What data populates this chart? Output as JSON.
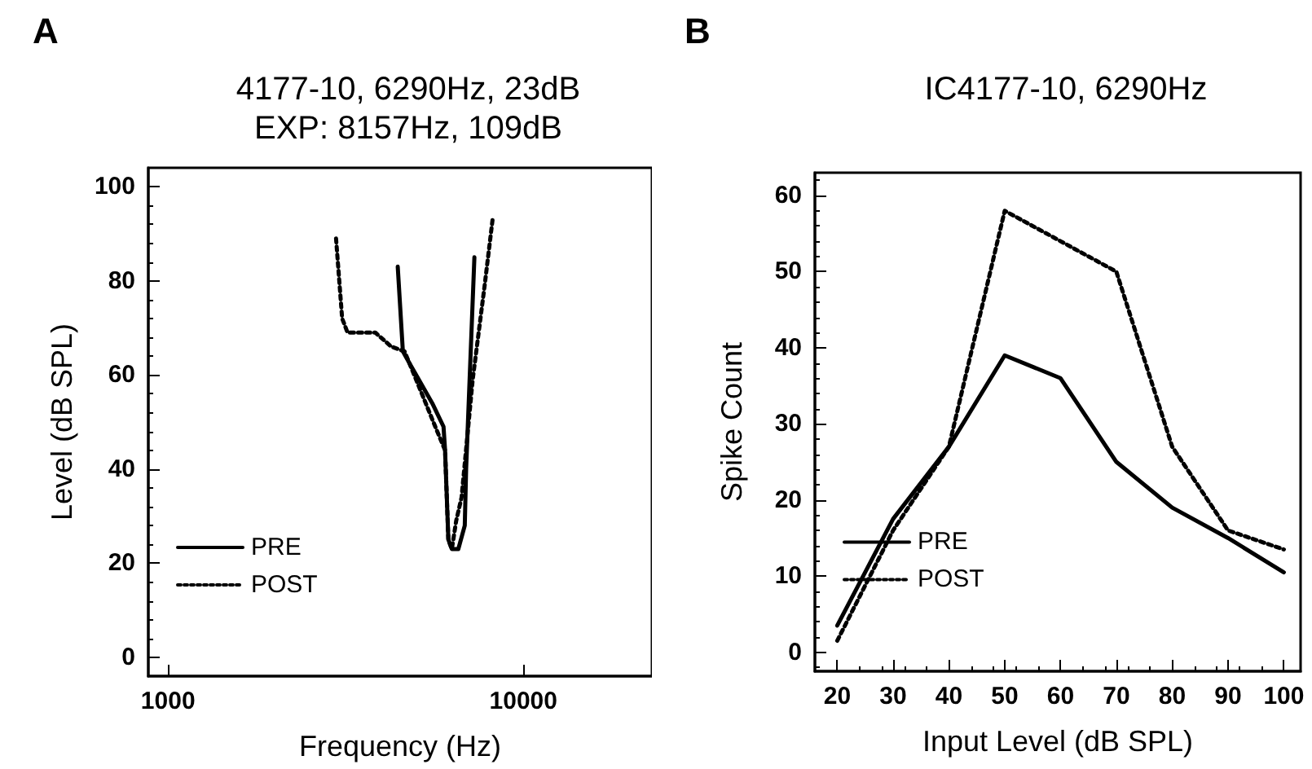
{
  "chart_data": [
    {
      "type": "line",
      "title": "4177-10, 6290Hz, 23dB\nEXP: 8157Hz, 109dB",
      "xlabel": "Frequency (Hz)",
      "ylabel": "Level (dB SPL)",
      "annotations": [
        "A"
      ],
      "log": "x",
      "xlim": [
        880,
        23000
      ],
      "xticks": [
        1000,
        10000
      ],
      "ylim": [
        -4,
        104
      ],
      "yticks": [
        0,
        20,
        40,
        60,
        80,
        100
      ],
      "grid": false,
      "legend": "bottom left",
      "marker": "none",
      "series": [
        {
          "name": "PRE",
          "color": "#000000",
          "line_style": "solid",
          "x": [
            4430,
            4580,
            4820,
            5540,
            5960,
            6020,
            6150,
            6290,
            6560,
            6840,
            6900,
            7280
          ],
          "values": [
            83,
            65,
            62,
            54,
            49,
            44,
            25,
            23,
            23,
            28,
            40,
            85
          ]
        },
        {
          "name": "POST",
          "color": "#000000",
          "line_style": "dotted",
          "x": [
            2970,
            3090,
            3200,
            3830,
            4250,
            4630,
            5650,
            6020,
            6150,
            6290,
            6470,
            6700,
            7200,
            7780,
            8190
          ],
          "values": [
            89,
            72,
            69,
            69,
            66,
            65,
            49,
            44,
            25,
            23,
            29,
            34,
            59,
            79,
            93
          ]
        }
      ]
    },
    {
      "type": "line",
      "title": "IC4177-10, 6290Hz",
      "xlabel": "Input Level (dB SPL)",
      "ylabel": "Spike Count",
      "annotations": [
        "B"
      ],
      "xlim": [
        16,
        103
      ],
      "xticks": [
        20,
        30,
        40,
        50,
        60,
        70,
        80,
        90,
        100
      ],
      "ylim": [
        -2.5,
        63
      ],
      "yticks": [
        0,
        10,
        20,
        30,
        40,
        50,
        60
      ],
      "grid": false,
      "legend": "bottom left",
      "marker": "none",
      "series": [
        {
          "name": "PRE",
          "color": "#000000",
          "line_style": "solid",
          "x": [
            20,
            30,
            40,
            50,
            60,
            70,
            80,
            90,
            100
          ],
          "values": [
            3.5,
            17.5,
            27,
            39,
            36,
            25,
            19,
            15,
            10.5
          ]
        },
        {
          "name": "POST",
          "color": "#000000",
          "line_style": "dotted",
          "x": [
            20,
            30,
            40,
            50,
            60,
            70,
            80,
            90,
            100
          ],
          "values": [
            1.5,
            16,
            27,
            58,
            54,
            50,
            27,
            16,
            13.5
          ]
        }
      ]
    }
  ]
}
